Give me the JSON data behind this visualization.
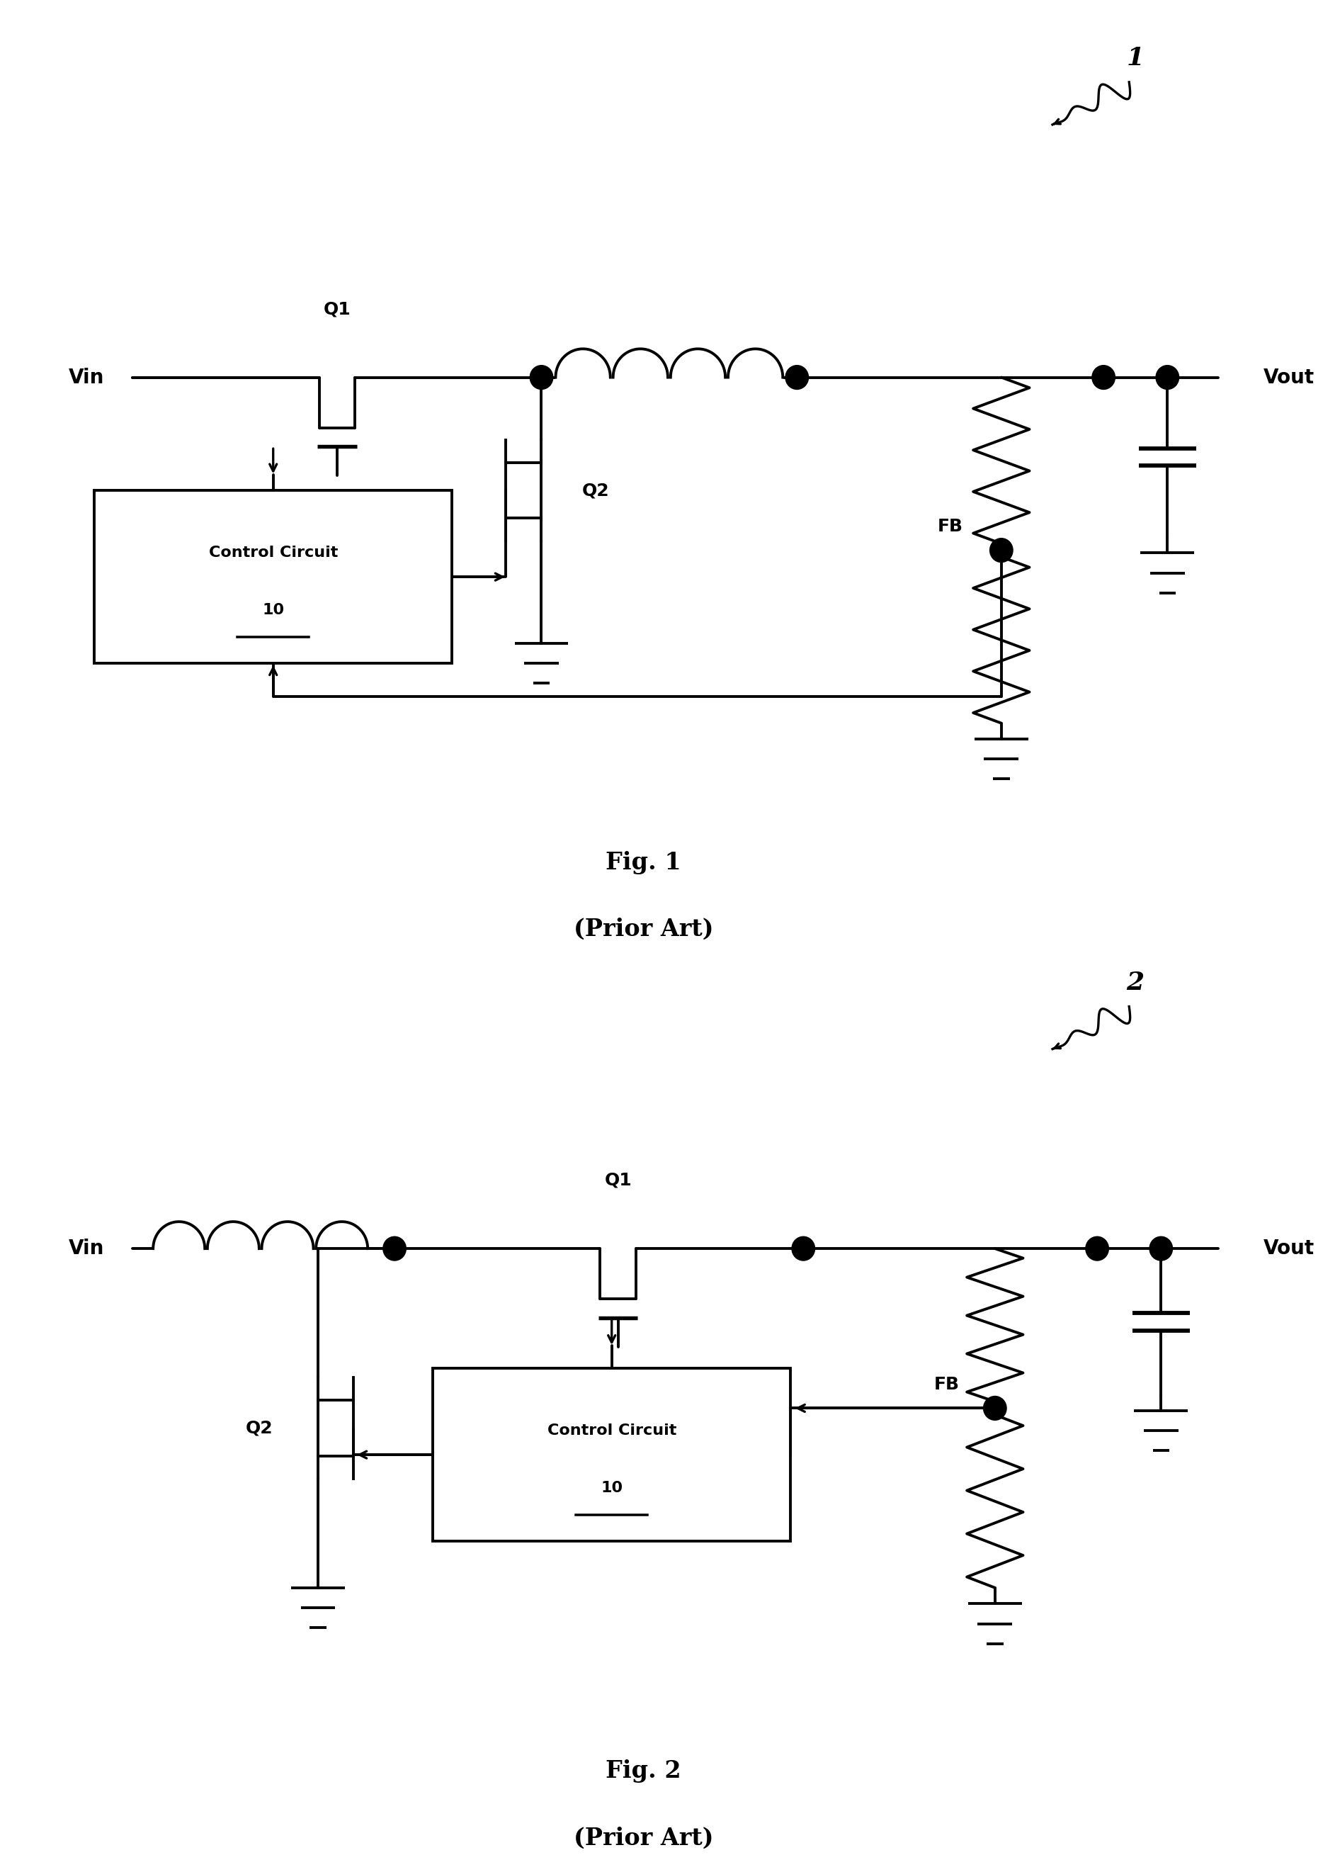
{
  "fig_width": 18.68,
  "fig_height": 26.42,
  "fig1": {
    "label": "1",
    "title": "Fig. 1",
    "subtitle": "(Prior Art)",
    "vin": "Vin",
    "vout": "Vout",
    "fb": "FB",
    "q1": "Q1",
    "q2": "Q2",
    "ctrl_line1": "Control Circuit",
    "ctrl_num": "10"
  },
  "fig2": {
    "label": "2",
    "title": "Fig. 2",
    "subtitle": "(Prior Art)",
    "vin": "Vin",
    "vout": "Vout",
    "fb": "FB",
    "q1": "Q1",
    "q2": "Q2",
    "ctrl_line1": "Control Circuit",
    "ctrl_num": "10"
  }
}
